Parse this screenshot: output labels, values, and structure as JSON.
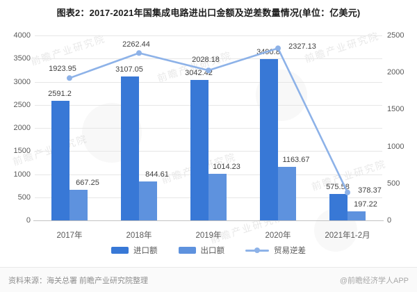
{
  "page": {
    "title": "图表2：2017-2021年国集成电路进出口金额及逆差数量情况(单位：亿美元)"
  },
  "watermark": {
    "text": "前瞻产业研究院"
  },
  "footer": {
    "source": "资料来源：海关总署 前瞻产业研究院整理",
    "credit": "@前瞻经济学人APP"
  },
  "colors": {
    "import_bar": "#3878d6",
    "export_bar": "#5e92de",
    "deficit_line": "#8db2e8",
    "grid": "#e6e6e6",
    "axis": "#c2c2c2"
  },
  "chart_data": {
    "type": "bar",
    "title": "图表2：2017-2021年国集成电路进出口金额及逆差数量情况(单位：亿美元)",
    "categories": [
      "2017年",
      "2018年",
      "2019年",
      "2020年",
      "2021年1-2月"
    ],
    "series": [
      {
        "name": "进口额",
        "type": "bar",
        "axis": "left",
        "color": "#3878d6",
        "values": [
          2591.2,
          3107.05,
          3042.42,
          3490.8,
          575.58
        ]
      },
      {
        "name": "出口额",
        "type": "bar",
        "axis": "left",
        "color": "#5e92de",
        "values": [
          667.25,
          844.61,
          1014.23,
          1163.67,
          197.22
        ]
      },
      {
        "name": "贸易逆差",
        "type": "line",
        "axis": "right",
        "color": "#8db2e8",
        "values": [
          1923.95,
          2262.44,
          2028.18,
          2327.13,
          378.37
        ]
      }
    ],
    "left_axis": {
      "min": 0,
      "max": 4000,
      "step": 500
    },
    "right_axis": {
      "min": 0,
      "max": 2500,
      "step": 500
    },
    "grid": true,
    "legend_position": "bottom",
    "unit": "亿美元"
  }
}
